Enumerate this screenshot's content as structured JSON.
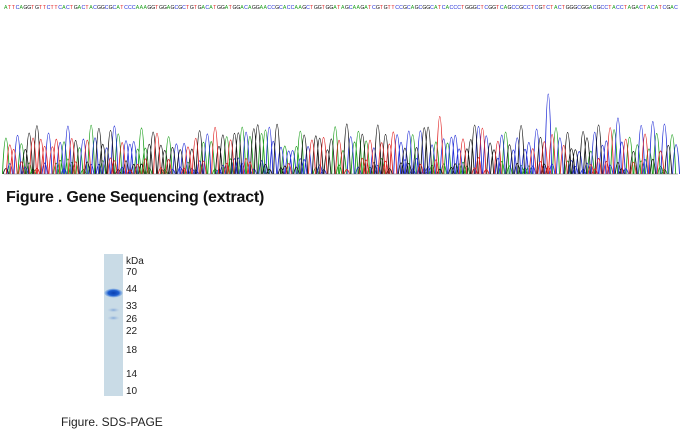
{
  "sequencing_figure": {
    "caption": "Figure . Gene Sequencing (extract)",
    "base_call_sequence": "ATTCAGGTGTTCTTCACTGACTACGGCGCATCCCAAAGGTGGAGCGCTGTGACATGGATGGACAGGAACCGCACCAAGCTGGTGGATAGCAAGATCGTGTTCCGCAGCGGCATCACCCTGGGCTCGGTCAGCCGCCTCGTCTACTGGGCGGACGCCTACCTAGACTACATCGAC",
    "base_colors": {
      "A": "#1a9e1a",
      "C": "#1f2bd6",
      "G": "#111111",
      "T": "#e02020"
    }
  },
  "sds_page_figure": {
    "caption": "Figure. SDS-PAGE",
    "unit_label": "kDa",
    "marker_labels": [
      "70",
      "44",
      "33",
      "26",
      "22",
      "18",
      "14",
      "10"
    ],
    "lane_color": "#c9dbe6",
    "band_color": "#1f5fd0"
  }
}
